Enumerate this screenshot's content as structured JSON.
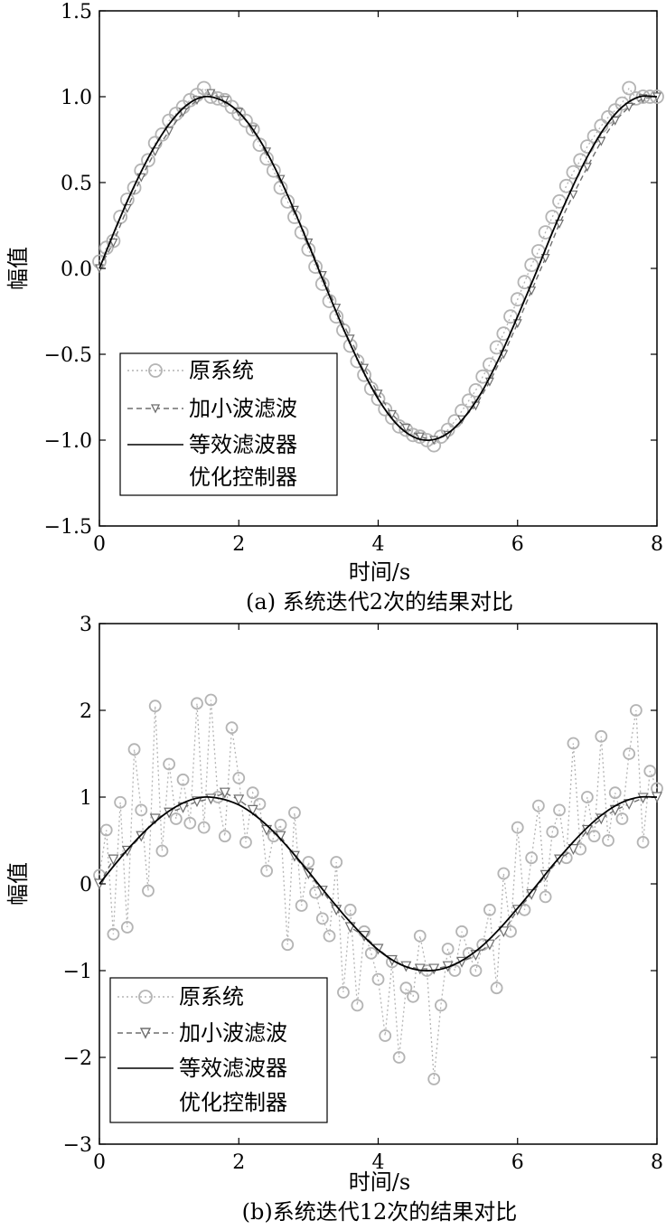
{
  "chart_data": [
    {
      "type": "line",
      "caption": "(a) 系统迭代2次的结果对比",
      "xlabel": "时间/s",
      "ylabel": "幅值",
      "xlim": [
        0,
        8
      ],
      "ylim": [
        -1.5,
        1.5
      ],
      "xticks": [
        "0",
        "2",
        "4",
        "6",
        "8"
      ],
      "yticks": [
        "1.5",
        "1.0",
        "0.5",
        "0.0",
        "−0.5",
        "−1.0",
        "−1.5"
      ],
      "legend_placement": "bottom-left",
      "series": [
        {
          "name": "原系统",
          "style": "dotted line with open circle markers",
          "color": "#b4b4b4",
          "x": [
            0.0,
            0.1,
            0.2,
            0.3,
            0.4,
            0.5,
            0.6,
            0.7,
            0.8,
            0.9,
            1.0,
            1.1,
            1.2,
            1.3,
            1.4,
            1.5,
            1.6,
            1.7,
            1.8,
            1.9,
            2.0,
            2.1,
            2.2,
            2.3,
            2.4,
            2.5,
            2.6,
            2.7,
            2.8,
            2.9,
            3.0,
            3.1,
            3.2,
            3.3,
            3.4,
            3.5,
            3.6,
            3.7,
            3.8,
            3.9,
            4.0,
            4.1,
            4.2,
            4.3,
            4.4,
            4.5,
            4.6,
            4.7,
            4.8,
            4.9,
            5.0,
            5.1,
            5.2,
            5.3,
            5.4,
            5.5,
            5.6,
            5.7,
            5.8,
            5.9,
            6.0,
            6.1,
            6.2,
            6.3,
            6.4,
            6.5,
            6.6,
            6.7,
            6.8,
            6.9,
            7.0,
            7.1,
            7.2,
            7.3,
            7.4,
            7.5,
            7.6,
            7.7,
            7.8,
            7.9,
            8.0
          ],
          "values": [
            0.04,
            0.12,
            0.16,
            0.3,
            0.4,
            0.47,
            0.57,
            0.63,
            0.73,
            0.78,
            0.86,
            0.9,
            0.94,
            0.98,
            1.01,
            1.05,
            1.0,
            0.99,
            0.98,
            0.94,
            0.9,
            0.86,
            0.81,
            0.72,
            0.64,
            0.57,
            0.47,
            0.39,
            0.3,
            0.21,
            0.11,
            0.01,
            -0.09,
            -0.19,
            -0.28,
            -0.36,
            -0.45,
            -0.54,
            -0.62,
            -0.7,
            -0.76,
            -0.82,
            -0.87,
            -0.92,
            -0.94,
            -0.97,
            -0.98,
            -1.0,
            -1.03,
            -0.98,
            -0.94,
            -0.89,
            -0.83,
            -0.77,
            -0.71,
            -0.63,
            -0.56,
            -0.46,
            -0.38,
            -0.28,
            -0.18,
            -0.08,
            0.02,
            0.1,
            0.21,
            0.3,
            0.39,
            0.48,
            0.56,
            0.63,
            0.71,
            0.77,
            0.83,
            0.88,
            0.92,
            0.96,
            1.05,
            0.99,
            1.0,
            1.0,
            1.0
          ]
        },
        {
          "name": "加小波滤波",
          "style": "dashed line with inverted triangle markers",
          "color": "#6e6e6e",
          "x": [
            0.0,
            0.2,
            0.4,
            0.6,
            0.8,
            1.0,
            1.2,
            1.4,
            1.6,
            1.8,
            2.0,
            2.2,
            2.4,
            2.6,
            2.8,
            3.0,
            3.2,
            3.4,
            3.6,
            3.8,
            4.0,
            4.2,
            4.4,
            4.6,
            4.8,
            5.0,
            5.2,
            5.4,
            5.6,
            5.8,
            6.0,
            6.2,
            6.4,
            6.6,
            6.8,
            7.0,
            7.2,
            7.4,
            7.6,
            7.8,
            8.0
          ],
          "values": [
            0.0,
            0.15,
            0.35,
            0.53,
            0.68,
            0.8,
            0.91,
            0.98,
            1.02,
            0.98,
            0.91,
            0.81,
            0.68,
            0.52,
            0.34,
            0.15,
            -0.04,
            -0.23,
            -0.41,
            -0.58,
            -0.73,
            -0.85,
            -0.93,
            -0.98,
            -1.0,
            -0.97,
            -0.88,
            -0.8,
            -0.66,
            -0.5,
            -0.32,
            -0.13,
            0.06,
            0.26,
            0.43,
            0.59,
            0.74,
            0.86,
            0.94,
            0.99,
            1.0
          ]
        },
        {
          "name": "等效滤波器优化控制器",
          "style": "solid line",
          "color": "#000000",
          "x": [
            0.0,
            0.25,
            0.5,
            0.75,
            1.0,
            1.25,
            1.5,
            1.75,
            2.0,
            2.25,
            2.5,
            2.75,
            3.0,
            3.25,
            3.5,
            3.75,
            4.0,
            4.25,
            4.5,
            4.75,
            5.0,
            5.25,
            5.5,
            5.75,
            6.0,
            6.25,
            6.5,
            6.75,
            7.0,
            7.25,
            7.5,
            7.75,
            8.0
          ],
          "values": [
            0.0,
            0.25,
            0.48,
            0.68,
            0.84,
            0.95,
            1.0,
            0.98,
            0.91,
            0.78,
            0.6,
            0.38,
            0.14,
            -0.11,
            -0.35,
            -0.57,
            -0.76,
            -0.9,
            -0.98,
            -1.0,
            -0.96,
            -0.86,
            -0.71,
            -0.51,
            -0.28,
            -0.04,
            0.21,
            0.44,
            0.65,
            0.82,
            0.94,
            1.0,
            1.0
          ]
        }
      ]
    },
    {
      "type": "line",
      "caption": "(b)系统迭代12次的结果对比",
      "xlabel": "时间/s",
      "ylabel": "幅值",
      "xlim": [
        0,
        8
      ],
      "ylim": [
        -3,
        3
      ],
      "xticks": [
        "0",
        "2",
        "4",
        "6",
        "8"
      ],
      "yticks": [
        "3",
        "2",
        "1",
        "0",
        "−1",
        "−2",
        "−3"
      ],
      "legend_placement": "bottom-left",
      "series": [
        {
          "name": "原系统",
          "style": "dotted line with open circle markers",
          "color": "#b4b4b4",
          "x": [
            0.0,
            0.1,
            0.2,
            0.3,
            0.4,
            0.5,
            0.6,
            0.7,
            0.8,
            0.9,
            1.0,
            1.1,
            1.2,
            1.3,
            1.4,
            1.5,
            1.6,
            1.7,
            1.8,
            1.9,
            2.0,
            2.1,
            2.2,
            2.3,
            2.4,
            2.5,
            2.6,
            2.7,
            2.8,
            2.9,
            3.0,
            3.1,
            3.2,
            3.3,
            3.4,
            3.5,
            3.6,
            3.7,
            3.8,
            3.9,
            4.0,
            4.1,
            4.2,
            4.3,
            4.4,
            4.5,
            4.6,
            4.7,
            4.8,
            4.9,
            5.0,
            5.1,
            5.2,
            5.3,
            5.4,
            5.5,
            5.6,
            5.7,
            5.8,
            5.9,
            6.0,
            6.1,
            6.2,
            6.3,
            6.4,
            6.5,
            6.6,
            6.7,
            6.8,
            6.9,
            7.0,
            7.1,
            7.2,
            7.3,
            7.4,
            7.5,
            7.6,
            7.7,
            7.8,
            7.9,
            8.0
          ],
          "values": [
            0.1,
            0.62,
            -0.58,
            0.94,
            -0.5,
            1.55,
            0.85,
            -0.08,
            2.05,
            0.38,
            1.38,
            0.75,
            1.2,
            0.7,
            2.08,
            0.65,
            2.12,
            1.0,
            0.55,
            1.8,
            1.22,
            0.48,
            1.05,
            0.92,
            0.15,
            0.55,
            0.68,
            -0.7,
            0.82,
            -0.25,
            0.25,
            -0.1,
            -0.4,
            -0.6,
            0.25,
            -1.25,
            -0.3,
            -1.4,
            -0.55,
            -0.8,
            -1.1,
            -1.75,
            -0.9,
            -2.0,
            -1.2,
            -1.3,
            -0.6,
            -1.0,
            -2.25,
            -1.4,
            -0.75,
            -1.0,
            -0.55,
            -0.8,
            -1.0,
            -0.7,
            -0.3,
            -1.2,
            0.12,
            -0.55,
            0.65,
            -0.3,
            0.3,
            0.9,
            -0.15,
            0.6,
            0.85,
            0.3,
            1.62,
            0.4,
            1.0,
            0.55,
            1.7,
            0.5,
            1.05,
            0.75,
            1.5,
            2.0,
            0.48,
            1.3,
            1.1
          ]
        },
        {
          "name": "加小波滤波",
          "style": "dashed line with inverted triangle markers",
          "color": "#6e6e6e",
          "x": [
            0.0,
            0.2,
            0.4,
            0.6,
            0.8,
            1.0,
            1.2,
            1.4,
            1.6,
            1.8,
            2.0,
            2.2,
            2.4,
            2.6,
            2.8,
            3.0,
            3.2,
            3.4,
            3.6,
            3.8,
            4.0,
            4.2,
            4.4,
            4.6,
            4.8,
            5.0,
            5.2,
            5.4,
            5.6,
            5.8,
            6.0,
            6.2,
            6.4,
            6.6,
            6.8,
            7.0,
            7.2,
            7.4,
            7.6,
            7.8,
            8.0
          ],
          "values": [
            0.0,
            0.28,
            0.38,
            0.55,
            0.75,
            0.82,
            0.88,
            0.95,
            0.98,
            1.05,
            0.97,
            0.85,
            0.62,
            0.55,
            0.32,
            0.12,
            -0.08,
            -0.3,
            -0.5,
            -0.6,
            -0.75,
            -0.88,
            -0.95,
            -0.98,
            -0.98,
            -0.95,
            -0.9,
            -0.82,
            -0.7,
            -0.55,
            -0.3,
            -0.12,
            0.1,
            0.28,
            0.4,
            0.62,
            0.75,
            0.85,
            0.92,
            0.99,
            1.0
          ]
        },
        {
          "name": "等效滤波器优化控制器",
          "style": "solid line",
          "color": "#000000",
          "x": [
            0.0,
            0.25,
            0.5,
            0.75,
            1.0,
            1.25,
            1.5,
            1.75,
            2.0,
            2.25,
            2.5,
            2.75,
            3.0,
            3.25,
            3.5,
            3.75,
            4.0,
            4.25,
            4.5,
            4.75,
            5.0,
            5.25,
            5.5,
            5.75,
            6.0,
            6.25,
            6.5,
            6.75,
            7.0,
            7.25,
            7.5,
            7.75,
            8.0
          ],
          "values": [
            0.0,
            0.25,
            0.48,
            0.68,
            0.84,
            0.95,
            1.0,
            0.98,
            0.91,
            0.78,
            0.6,
            0.38,
            0.14,
            -0.11,
            -0.35,
            -0.57,
            -0.76,
            -0.9,
            -0.98,
            -1.0,
            -0.96,
            -0.86,
            -0.71,
            -0.51,
            -0.28,
            -0.04,
            0.21,
            0.44,
            0.65,
            0.82,
            0.94,
            1.0,
            1.0
          ]
        }
      ]
    }
  ],
  "legend": {
    "line1": "原系统",
    "line2": "加小波滤波",
    "line3a": "等效滤波器",
    "line3b": "优化控制器"
  }
}
